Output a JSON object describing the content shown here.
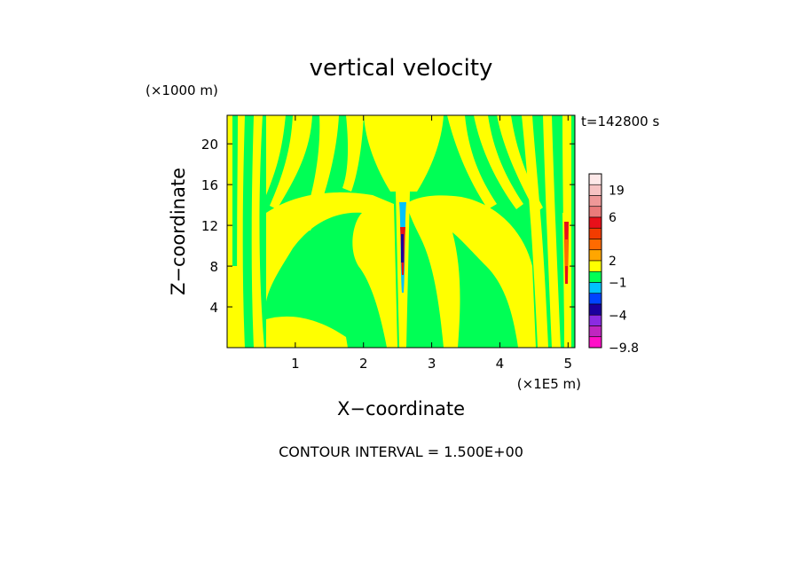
{
  "chart_data": {
    "type": "heatmap",
    "title": "vertical velocity",
    "xlabel": "X−coordinate",
    "ylabel": "Z−coordinate",
    "x_unit": "(×1E5 m)",
    "y_unit": "(×1000 m)",
    "time_label": "t=142800 s",
    "xlim": [
      0,
      5.1
    ],
    "ylim": [
      0,
      22.8
    ],
    "x_ticks": [
      1,
      2,
      3,
      4,
      5
    ],
    "y_ticks": [
      4,
      8,
      12,
      16,
      20
    ],
    "contour_interval_text": "CONTOUR INTERVAL = 1.500E+00",
    "colorbar": {
      "levels": [
        {
          "upper": 22,
          "color": "#fde8e8"
        },
        {
          "upper": 19,
          "color": "#f6c2c2"
        },
        {
          "upper": 14,
          "color": "#ef9898"
        },
        {
          "upper": 10,
          "color": "#ea7a7a"
        },
        {
          "upper": 6,
          "color": "#e8101a"
        },
        {
          "upper": 5,
          "color": "#f23c00"
        },
        {
          "upper": 4,
          "color": "#ff6a00"
        },
        {
          "upper": 3,
          "color": "#ffa600"
        },
        {
          "upper": 2,
          "color": "#ffff00"
        },
        {
          "upper": 0.5,
          "color": "#00ff55"
        },
        {
          "upper": -1,
          "color": "#00c2ff"
        },
        {
          "upper": -2,
          "color": "#0044ff"
        },
        {
          "upper": -3,
          "color": "#1a009e"
        },
        {
          "upper": -4,
          "color": "#8a2be2"
        },
        {
          "upper": -6,
          "color": "#c026c0"
        },
        {
          "upper": -8,
          "color": "#ff10c8"
        }
      ],
      "labels": [
        "19",
        "6",
        "2",
        "−1",
        "−4",
        "−9.8"
      ],
      "label_values": [
        19,
        6,
        2,
        -1,
        -4,
        -9.8
      ],
      "min": -9.8
    },
    "field_description_values": {
      "dominant_positive": 1.0,
      "dominant_negative": -0.5,
      "jet_x": [
        2.58,
        5.02
      ],
      "jet_peak": 6
    }
  }
}
